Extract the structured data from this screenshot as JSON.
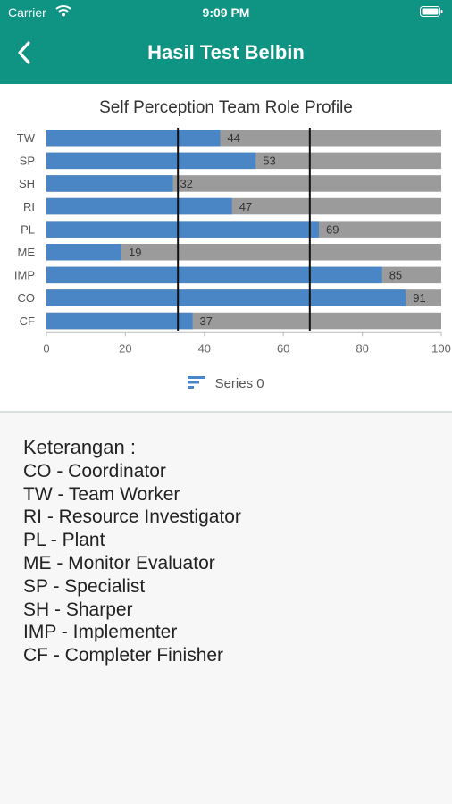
{
  "status_bar": {
    "carrier": "Carrier",
    "time": "9:09 PM"
  },
  "header": {
    "title": "Hasil Test Belbin"
  },
  "colors": {
    "header": "#0f9484",
    "bar": "#4a86c5",
    "track": "#9b9b9b",
    "marker": "#111111"
  },
  "icons": {
    "back": "chevron-left-icon",
    "wifi": "wifi-icon",
    "battery": "battery-icon",
    "legend": "bar-chart-icon"
  },
  "chart_data": {
    "type": "bar",
    "orientation": "horizontal",
    "title": "Self Perception Team Role Profile",
    "categories": [
      "TW",
      "SP",
      "SH",
      "RI",
      "PL",
      "ME",
      "IMP",
      "CO",
      "CF"
    ],
    "series": [
      {
        "name": "Series 0",
        "values": [
          44,
          53,
          32,
          47,
          69,
          19,
          85,
          91,
          37
        ]
      }
    ],
    "xlim": [
      0,
      100
    ],
    "xticks": [
      "0",
      "20",
      "40",
      "60",
      "80",
      "100"
    ],
    "reference_lines": [
      33.3,
      66.7
    ],
    "data_labels": true,
    "legend": "bottom-center",
    "grid": false
  },
  "legend_text": "Series 0",
  "info": {
    "title": "Keterangan :",
    "lines": [
      "CO - Coordinator",
      "TW - Team Worker",
      "RI - Resource Investigator",
      "PL - Plant",
      "ME - Monitor Evaluator",
      "SP - Specialist",
      "SH - Sharper",
      "IMP - Implementer",
      "CF - Completer Finisher"
    ]
  }
}
